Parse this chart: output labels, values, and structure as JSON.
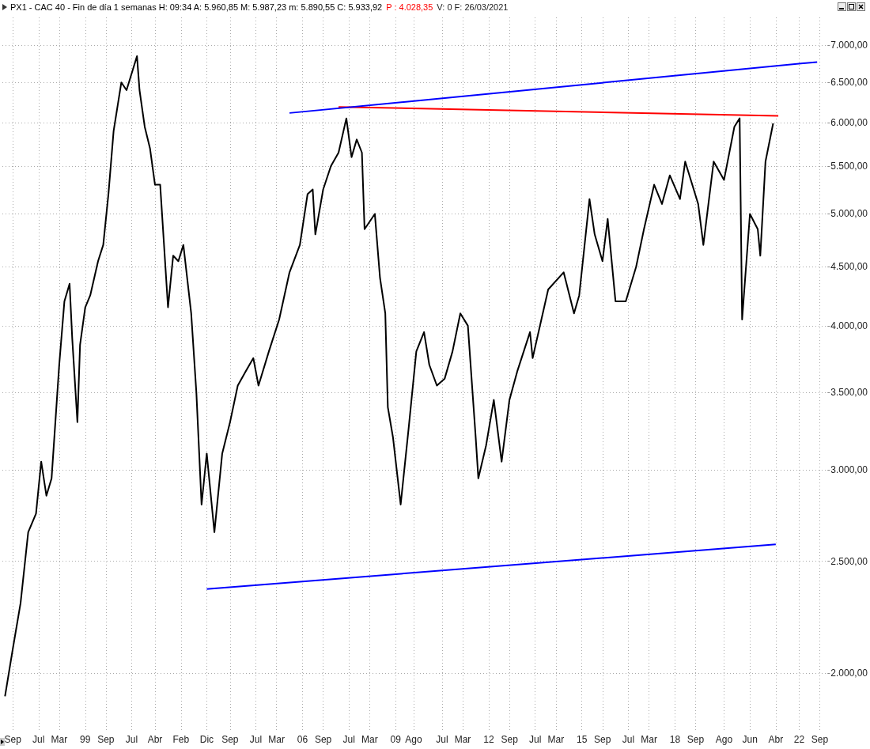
{
  "chart_data": {
    "type": "line",
    "title": "PX1 - CAC 40 - Fin de día 1 semanas H: 09:34 A: 5.960,85 M: 5.987,23 m: 5.890,55 C: 5.933,92",
    "annotations": [
      "P : 4.028,35",
      "V: 0  F: 26/03/2021"
    ],
    "xlim": [
      "1996-05",
      "2022-12"
    ],
    "xticks": [
      {
        "value": "1996-09",
        "label": "Sep"
      },
      {
        "value": "1997-07",
        "label": "Jul"
      },
      {
        "value": "1998-03",
        "label": "Mar"
      },
      {
        "value": "1999-01",
        "label": "99"
      },
      {
        "value": "1999-09",
        "label": "Sep"
      },
      {
        "value": "2000-07",
        "label": "Jul"
      },
      {
        "value": "2001-04",
        "label": "Abr"
      },
      {
        "value": "2002-02",
        "label": "Feb"
      },
      {
        "value": "2002-12",
        "label": "Dic"
      },
      {
        "value": "2003-09",
        "label": "Sep"
      },
      {
        "value": "2004-07",
        "label": "Jul"
      },
      {
        "value": "2005-03",
        "label": "Mar"
      },
      {
        "value": "2006-01",
        "label": "06"
      },
      {
        "value": "2006-09",
        "label": "Sep"
      },
      {
        "value": "2007-07",
        "label": "Jul"
      },
      {
        "value": "2008-03",
        "label": "Mar"
      },
      {
        "value": "2009-01",
        "label": "09"
      },
      {
        "value": "2009-08",
        "label": "Ago"
      },
      {
        "value": "2010-07",
        "label": "Jul"
      },
      {
        "value": "2011-03",
        "label": "Mar"
      },
      {
        "value": "2012-01",
        "label": "12"
      },
      {
        "value": "2012-09",
        "label": "Sep"
      },
      {
        "value": "2013-07",
        "label": "Jul"
      },
      {
        "value": "2014-03",
        "label": "Mar"
      },
      {
        "value": "2015-01",
        "label": "15"
      },
      {
        "value": "2015-09",
        "label": "Sep"
      },
      {
        "value": "2016-07",
        "label": "Jul"
      },
      {
        "value": "2017-03",
        "label": "Mar"
      },
      {
        "value": "2018-01",
        "label": "18"
      },
      {
        "value": "2018-09",
        "label": "Sep"
      },
      {
        "value": "2019-08",
        "label": "Ago"
      },
      {
        "value": "2020-06",
        "label": "Jun"
      },
      {
        "value": "2021-04",
        "label": "Abr"
      },
      {
        "value": "2022-01",
        "label": "22"
      },
      {
        "value": "2022-09",
        "label": "Sep"
      }
    ],
    "ylim": [
      1780,
      7400
    ],
    "yticks": [
      {
        "value": 2000,
        "label": "2.000,00"
      },
      {
        "value": 2500,
        "label": "2.500,00"
      },
      {
        "value": 3000,
        "label": "3.000,00"
      },
      {
        "value": 3500,
        "label": "3.500,00"
      },
      {
        "value": 4000,
        "label": "4.000,00"
      },
      {
        "value": 4500,
        "label": "4.500,00"
      },
      {
        "value": 5000,
        "label": "5.000,00"
      },
      {
        "value": 5500,
        "label": "5.500,00"
      },
      {
        "value": 6000,
        "label": "6.000,00"
      },
      {
        "value": 6500,
        "label": "6.500,00"
      },
      {
        "value": 7000,
        "label": "7.000,00"
      }
    ],
    "log": "y",
    "grid": true,
    "marker": "none",
    "series": [
      {
        "color": "#000000",
        "x": [
          "1996-06",
          "1996-09",
          "1996-12",
          "1997-03",
          "1997-06",
          "1997-08",
          "1997-10",
          "1997-12",
          "1998-03",
          "1998-05",
          "1998-07",
          "1998-08",
          "1998-10",
          "1998-11",
          "1999-01",
          "1999-03",
          "1999-06",
          "1999-08",
          "1999-10",
          "1999-12",
          "2000-03",
          "2000-05",
          "2000-09",
          "2000-10",
          "2000-12",
          "2001-02",
          "2001-04",
          "2001-06",
          "2001-09",
          "2001-11",
          "2002-01",
          "2002-03",
          "2002-06",
          "2002-08",
          "2002-10",
          "2002-12",
          "2003-03",
          "2003-06",
          "2003-09",
          "2003-12",
          "2004-03",
          "2004-06",
          "2004-08",
          "2004-12",
          "2005-04",
          "2005-08",
          "2005-12",
          "2006-03",
          "2006-05",
          "2006-06",
          "2006-09",
          "2006-12",
          "2007-03",
          "2007-06",
          "2007-08",
          "2007-10",
          "2007-12",
          "2008-01",
          "2008-05",
          "2008-07",
          "2008-09",
          "2008-10",
          "2008-12",
          "2009-03",
          "2009-06",
          "2009-09",
          "2009-12",
          "2010-02",
          "2010-05",
          "2010-08",
          "2010-11",
          "2011-02",
          "2011-05",
          "2011-08",
          "2011-09",
          "2011-12",
          "2012-03",
          "2012-06",
          "2012-09",
          "2012-12",
          "2013-05",
          "2013-06",
          "2013-12",
          "2014-06",
          "2014-10",
          "2014-12",
          "2015-04",
          "2015-06",
          "2015-09",
          "2015-11",
          "2016-02",
          "2016-06",
          "2016-10",
          "2017-01",
          "2017-05",
          "2017-08",
          "2017-11",
          "2018-03",
          "2018-05",
          "2018-10",
          "2018-12",
          "2019-04",
          "2019-08",
          "2019-12",
          "2020-02",
          "2020-03",
          "2020-06",
          "2020-09",
          "2020-10",
          "2020-12",
          "2021-03"
        ],
        "values": [
          1910,
          2100,
          2300,
          2650,
          2750,
          3050,
          2850,
          2950,
          3700,
          4200,
          4350,
          3900,
          3300,
          3850,
          4150,
          4250,
          4550,
          4700,
          5200,
          5900,
          6500,
          6400,
          6850,
          6400,
          5950,
          5700,
          5300,
          5300,
          4150,
          4600,
          4550,
          4700,
          4100,
          3500,
          2800,
          3100,
          2650,
          3100,
          3300,
          3550,
          3650,
          3750,
          3550,
          3800,
          4050,
          4450,
          4700,
          5200,
          5250,
          4800,
          5250,
          5500,
          5650,
          6050,
          5600,
          5800,
          5650,
          4850,
          5000,
          4400,
          4100,
          3400,
          3200,
          2800,
          3250,
          3800,
          3950,
          3700,
          3550,
          3600,
          3800,
          4100,
          4000,
          3200,
          2950,
          3150,
          3450,
          3050,
          3450,
          3650,
          3950,
          3750,
          4300,
          4450,
          4100,
          4250,
          5150,
          4800,
          4550,
          4950,
          4200,
          4200,
          4500,
          4850,
          5300,
          5100,
          5400,
          5150,
          5550,
          5100,
          4700,
          5550,
          5350,
          5950,
          6050,
          4050,
          5000,
          4850,
          4600,
          5550,
          5990
        ]
      },
      {
        "color": "#ff0000",
        "x": [
          "2007-03",
          "2021-05"
        ],
        "values": [
          6190,
          6080
        ]
      },
      {
        "color": "#0000ff",
        "x": [
          "2005-08",
          "2022-08"
        ],
        "values": [
          6115,
          6770
        ]
      },
      {
        "color": "#0000ff",
        "x": [
          "2002-12",
          "2021-04"
        ],
        "values": [
          2366,
          2586
        ]
      }
    ]
  }
}
